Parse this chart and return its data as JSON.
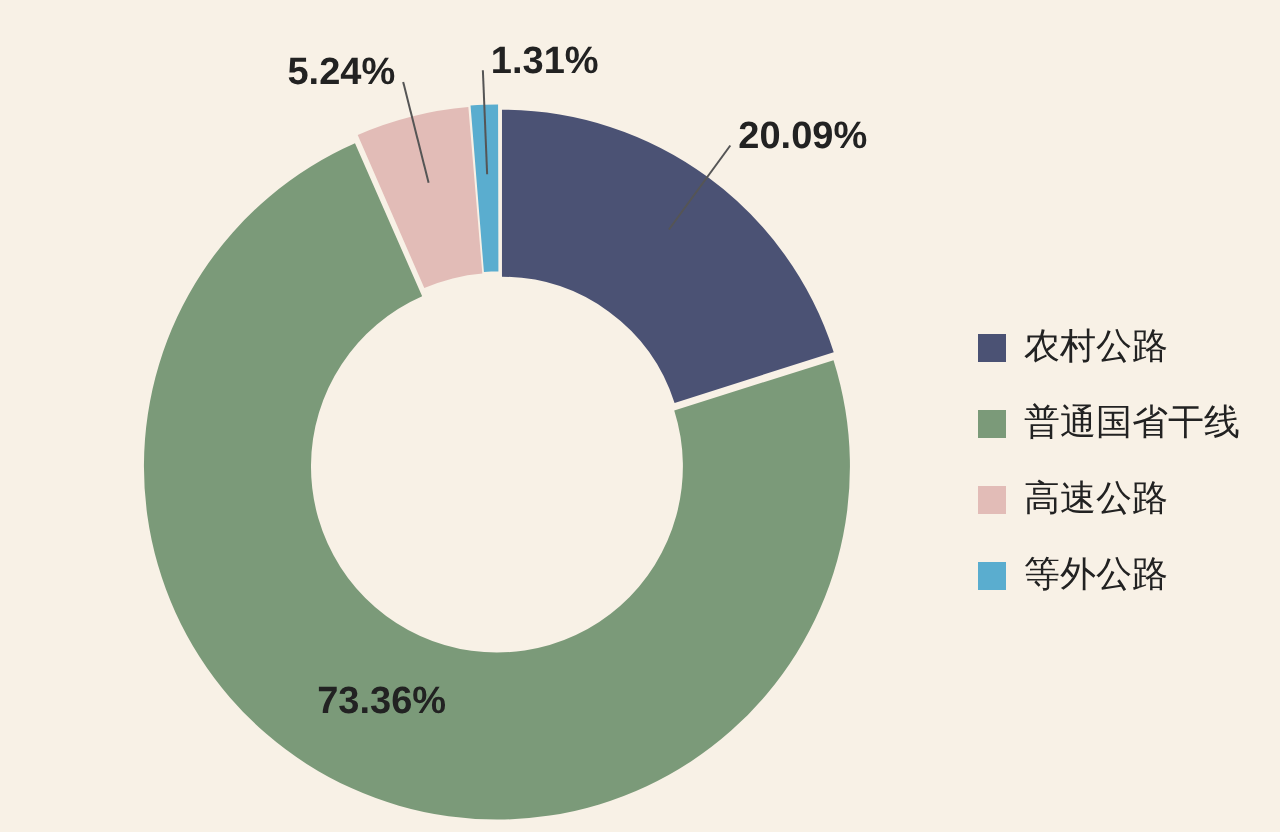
{
  "chart_data": {
    "type": "donut",
    "categories": [
      "农村公路",
      "普通国省干线",
      "高速公路",
      "等外公路"
    ],
    "values": [
      20.09,
      73.36,
      5.24,
      1.31
    ],
    "colors": [
      "#4b5274",
      "#7b9a79",
      "#e2bcb7",
      "#5aadcf"
    ],
    "value_labels": [
      "20.09%",
      "73.36%",
      "5.24%",
      "1.31%"
    ],
    "legend": "right"
  }
}
